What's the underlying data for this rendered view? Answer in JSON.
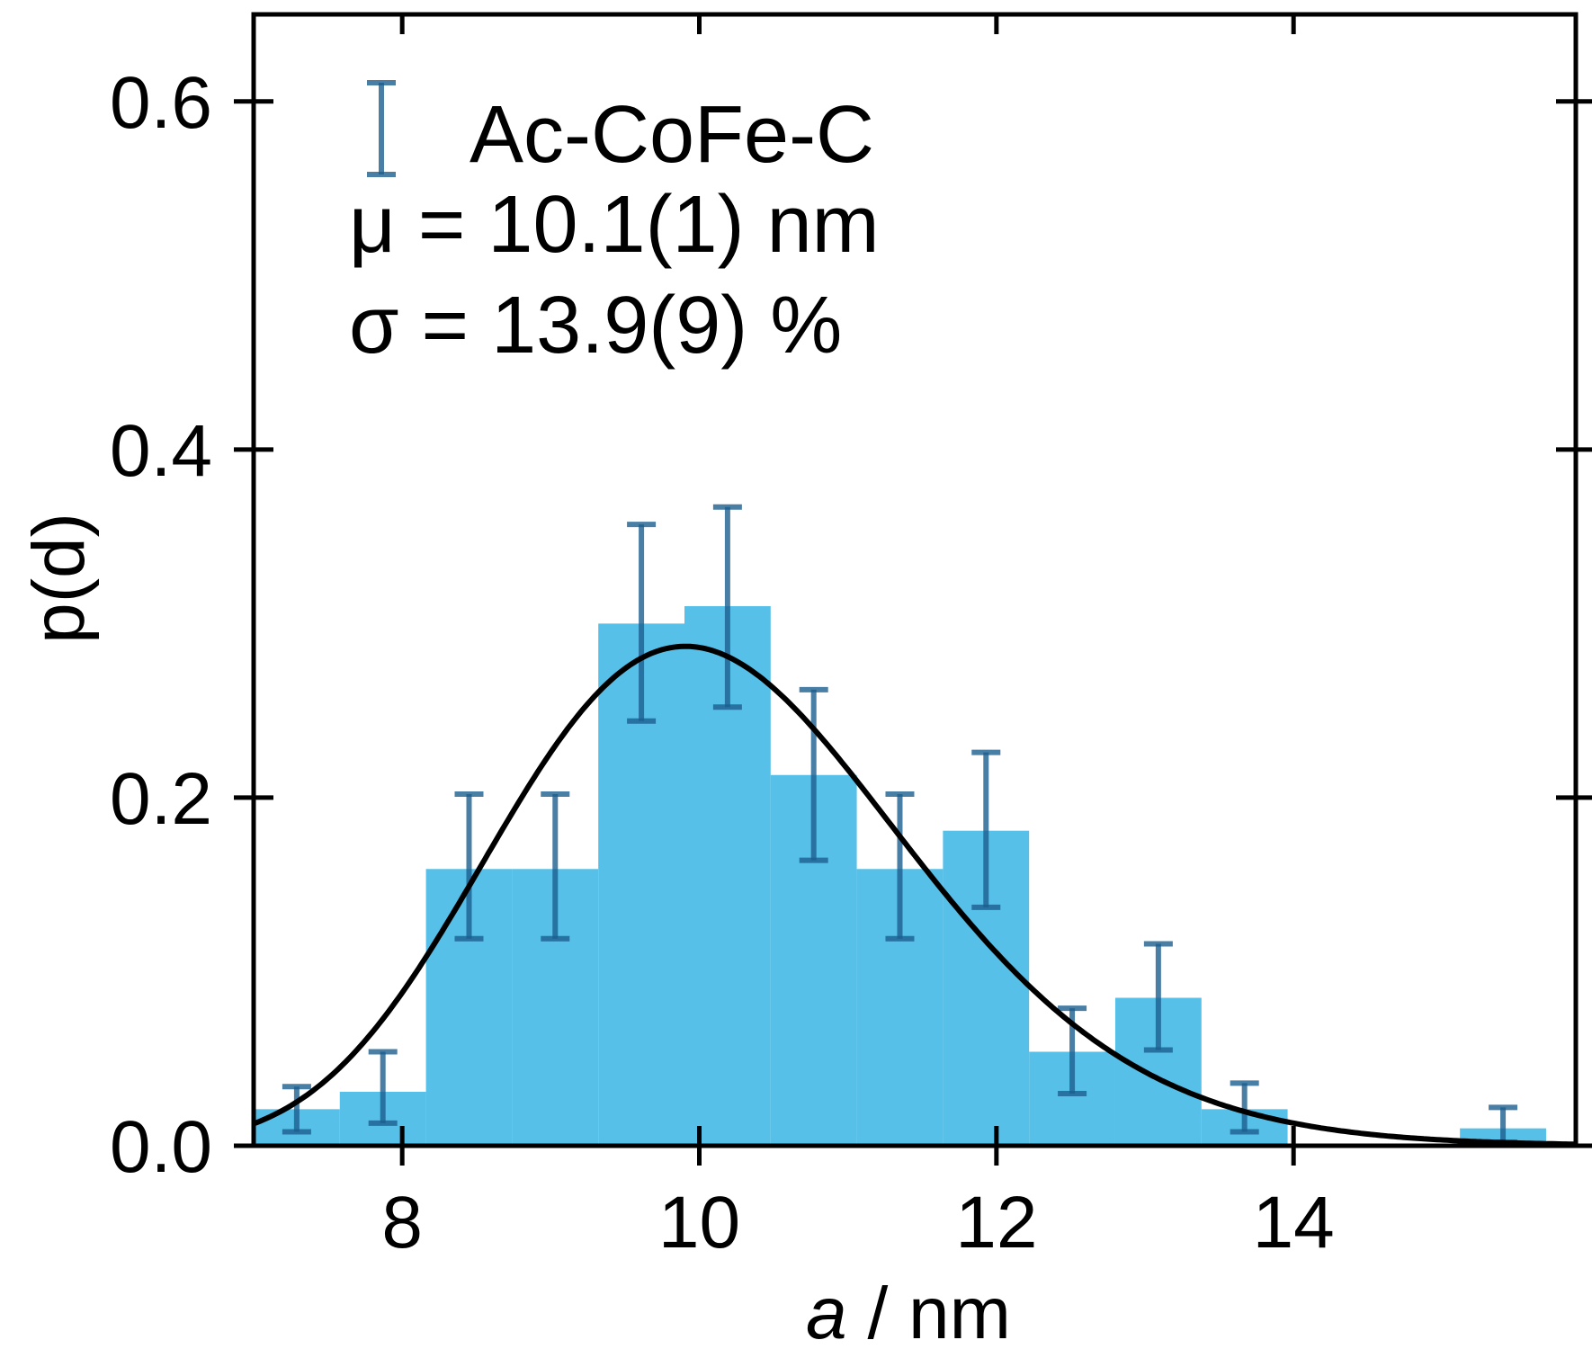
{
  "chart_data": {
    "type": "bar",
    "xlabel_var": "a",
    "xlabel_unit": "/ nm",
    "ylabel": "p(d)",
    "xlim": [
      7.0,
      15.9
    ],
    "ylim": [
      0.0,
      0.65
    ],
    "xticks": [
      8,
      10,
      12,
      14
    ],
    "xtick_labels": [
      "8",
      "10",
      "12",
      "14"
    ],
    "yticks": [
      0.0,
      0.2,
      0.4,
      0.6
    ],
    "ytick_labels": [
      "0.0",
      "0.2",
      "0.4",
      "0.6"
    ],
    "grid": false,
    "legend_placement": "top-left",
    "histogram": {
      "name": "Ac-CoFe-C",
      "bin_edges": [
        7.0,
        7.58,
        8.16,
        8.74,
        9.32,
        9.9,
        10.48,
        11.06,
        11.64,
        12.22,
        12.8,
        13.38,
        13.96,
        14.54,
        15.12,
        15.7
      ],
      "values": [
        0.021,
        0.031,
        0.159,
        0.159,
        0.3,
        0.31,
        0.213,
        0.159,
        0.181,
        0.054,
        0.085,
        0.021,
        0.001,
        0.001,
        0.01
      ],
      "error_lower": [
        0.013,
        0.018,
        0.04,
        0.04,
        0.056,
        0.058,
        0.049,
        0.04,
        0.044,
        0.024,
        0.03,
        0.013,
        0,
        0,
        0.008
      ],
      "error_upper": [
        0.013,
        0.023,
        0.043,
        0.043,
        0.057,
        0.057,
        0.049,
        0.043,
        0.045,
        0.025,
        0.031,
        0.015,
        0,
        0,
        0.012
      ],
      "show_error": [
        true,
        true,
        true,
        true,
        true,
        true,
        true,
        true,
        true,
        true,
        true,
        true,
        false,
        false,
        true
      ]
    },
    "fit_curve": {
      "type": "lognormal",
      "mu_nm": 10.1,
      "sigma": 0.139
    },
    "annotations": [
      {
        "id": "mu",
        "text": "μ = 10.1(1) nm"
      },
      {
        "id": "sigma",
        "text": "σ = 13.9(9) %"
      }
    ],
    "colors": {
      "bar": "#56c0e8",
      "errorbar": "#1b5e8f",
      "fit": "#000000",
      "axis": "#000000"
    }
  }
}
